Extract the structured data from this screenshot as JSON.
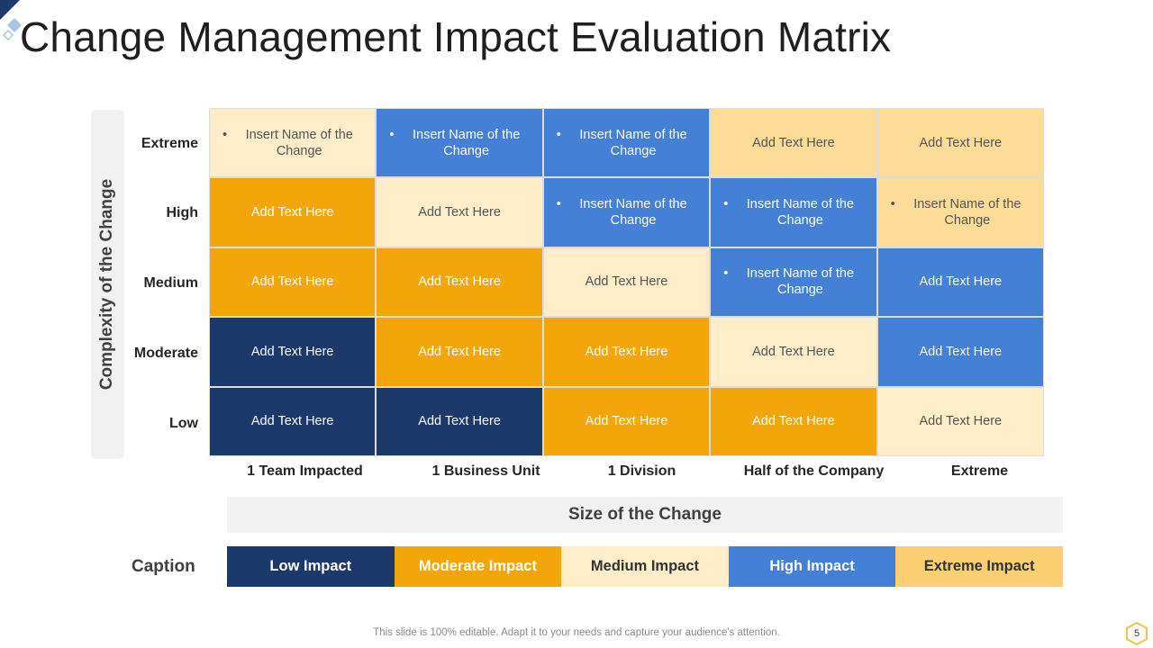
{
  "title": "Change Management Impact Evaluation Matrix",
  "y_axis_title": "Complexity of the Change",
  "x_axis_title": "Size of the Change",
  "rows": [
    "Extreme",
    "High",
    "Medium",
    "Moderate",
    "Low"
  ],
  "columns": [
    "1 Team Impacted",
    "1 Business  Unit",
    "1 Division",
    "Half of the Company",
    "Extreme"
  ],
  "matrix": [
    [
      {
        "text": "Insert Name of the Change",
        "bullet": true,
        "level": "medium"
      },
      {
        "text": "Insert Name of the Change",
        "bullet": true,
        "level": "high"
      },
      {
        "text": "Insert Name of the Change",
        "bullet": true,
        "level": "high"
      },
      {
        "text": "Add Text Here",
        "bullet": false,
        "level": "extreme"
      },
      {
        "text": "Add Text Here",
        "bullet": false,
        "level": "extreme"
      }
    ],
    [
      {
        "text": "Add Text Here",
        "bullet": false,
        "level": "moderate"
      },
      {
        "text": "Add Text Here",
        "bullet": false,
        "level": "medium"
      },
      {
        "text": "Insert Name of the Change",
        "bullet": true,
        "level": "high"
      },
      {
        "text": "Insert Name of the Change",
        "bullet": true,
        "level": "high"
      },
      {
        "text": "Insert Name of the Change",
        "bullet": true,
        "level": "extreme"
      }
    ],
    [
      {
        "text": "Add Text Here",
        "bullet": false,
        "level": "moderate"
      },
      {
        "text": "Add Text Here",
        "bullet": false,
        "level": "moderate"
      },
      {
        "text": "Add Text Here",
        "bullet": false,
        "level": "medium"
      },
      {
        "text": "Insert Name of the Change",
        "bullet": true,
        "level": "high"
      },
      {
        "text": "Add Text Here",
        "bullet": false,
        "level": "high"
      }
    ],
    [
      {
        "text": "Add Text Here",
        "bullet": false,
        "level": "low"
      },
      {
        "text": "Add Text Here",
        "bullet": false,
        "level": "moderate"
      },
      {
        "text": "Add Text Here",
        "bullet": false,
        "level": "moderate"
      },
      {
        "text": "Add Text Here",
        "bullet": false,
        "level": "medium"
      },
      {
        "text": "Add Text Here",
        "bullet": false,
        "level": "high"
      }
    ],
    [
      {
        "text": "Add Text Here",
        "bullet": false,
        "level": "low"
      },
      {
        "text": "Add Text Here",
        "bullet": false,
        "level": "low"
      },
      {
        "text": "Add Text Here",
        "bullet": false,
        "level": "moderate"
      },
      {
        "text": "Add Text Here",
        "bullet": false,
        "level": "moderate"
      },
      {
        "text": "Add Text Here",
        "bullet": false,
        "level": "medium"
      }
    ]
  ],
  "caption_label": "Caption",
  "legend": [
    {
      "label": "Low Impact",
      "level": "low"
    },
    {
      "label": "Moderate Impact",
      "level": "moderate"
    },
    {
      "label": "Medium Impact",
      "level": "medium"
    },
    {
      "label": "High Impact",
      "level": "high"
    },
    {
      "label": "Extreme Impact",
      "level": "extreme"
    }
  ],
  "colors": {
    "low": "#1b3a6b",
    "moderate": "#f2a60a",
    "medium": "#feedc8",
    "high": "#4480d6",
    "extreme": "#fddc97"
  },
  "footer": "This slide is 100% editable. Adapt it to your needs and capture your audience's attention.",
  "page_number": "5"
}
